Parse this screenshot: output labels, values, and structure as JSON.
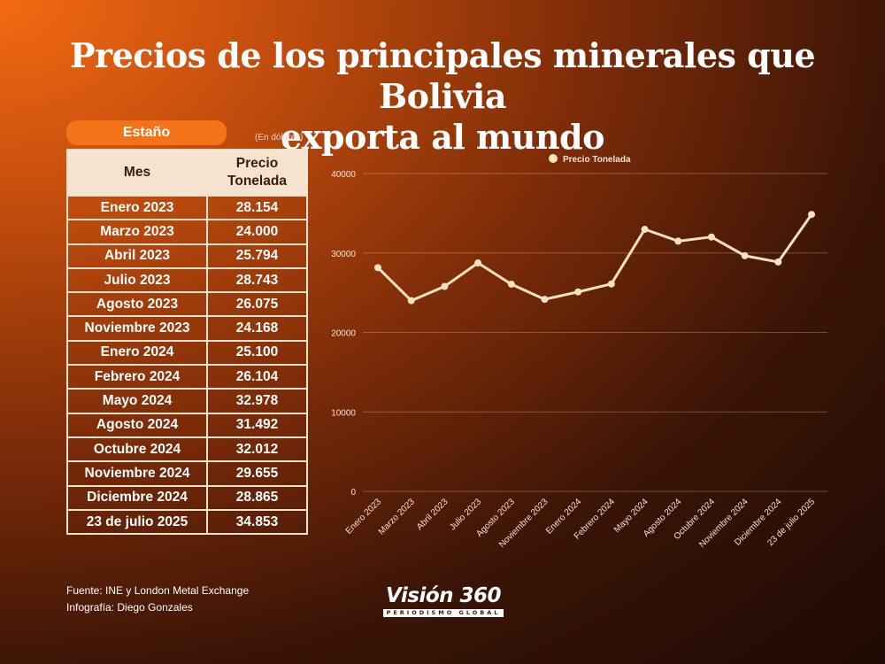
{
  "title_line1": "Precios de los principales minerales que Bolivia",
  "title_line2": "exporta al mundo",
  "mineral_label": "Estaño",
  "unit_note": "(En dólares)",
  "table": {
    "header_mes": "Mes",
    "header_precio_1": "Precio",
    "header_precio_2": "Tonelada",
    "rows": [
      {
        "mes": "Enero 2023",
        "precio": "28.154"
      },
      {
        "mes": "Marzo 2023",
        "precio": "24.000"
      },
      {
        "mes": "Abril 2023",
        "precio": "25.794"
      },
      {
        "mes": "Julio 2023",
        "precio": "28.743"
      },
      {
        "mes": "Agosto 2023",
        "precio": "26.075"
      },
      {
        "mes": "Noviembre 2023",
        "precio": "24.168"
      },
      {
        "mes": "Enero 2024",
        "precio": "25.100"
      },
      {
        "mes": "Febrero 2024",
        "precio": "26.104"
      },
      {
        "mes": "Mayo 2024",
        "precio": "32.978"
      },
      {
        "mes": "Agosto 2024",
        "precio": "31.492"
      },
      {
        "mes": "Octubre 2024",
        "precio": "32.012"
      },
      {
        "mes": "Noviembre 2024",
        "precio": "29.655"
      },
      {
        "mes": "Diciembre 2024",
        "precio": "28.865"
      },
      {
        "mes": "23 de julio 2025",
        "precio": "34.853"
      }
    ]
  },
  "chart_data": {
    "type": "line",
    "categories": [
      "Enero 2023",
      "Marzo 2023",
      "Abril 2023",
      "Julio 2023",
      "Agosto 2023",
      "Noviembre 2023",
      "Enero 2024",
      "Febrero 2024",
      "Mayo 2024",
      "Agosto 2024",
      "Octubre 2024",
      "Noviembre 2024",
      "Diciembre 2024",
      "23 de julio 2025"
    ],
    "series": [
      {
        "name": "Precio Tonelada",
        "values": [
          28154,
          24000,
          25794,
          28743,
          26075,
          24168,
          25100,
          26104,
          32978,
          31492,
          32012,
          29655,
          28865,
          34853
        ]
      }
    ],
    "yticks": [
      "0",
      "10000",
      "20000",
      "30000",
      "40000"
    ],
    "ylim": [
      0,
      40000
    ],
    "grid": true,
    "legend_position": "top-center",
    "line_color": "#f8e2c2"
  },
  "footer_source": "Fuente: INE y London Metal Exchange",
  "footer_credit": "Infografía: Diego Gonzales",
  "logo_text": "Visión 360",
  "logo_tagline": "PERIODISMO GLOBAL"
}
